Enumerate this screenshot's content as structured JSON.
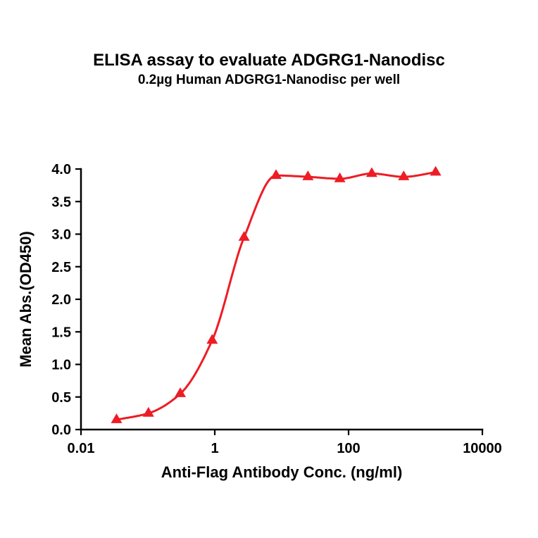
{
  "chart_data": {
    "type": "scatter",
    "title": "ELISA assay to evaluate ADGRG1-Nanodisc",
    "subtitle": "0.2µg Human ADGRG1-Nanodisc per well",
    "xlabel": "Anti-Flag Antibody Conc. (ng/ml)",
    "ylabel": "Mean Abs.(OD450)",
    "x_scale": "log10",
    "xlim": [
      0.01,
      10000
    ],
    "ylim": [
      0.0,
      4.0
    ],
    "x_ticks": [
      0.01,
      1,
      100,
      10000
    ],
    "x_tick_labels": [
      "0.01",
      "1",
      "100",
      "10000"
    ],
    "y_ticks": [
      0.0,
      0.5,
      1.0,
      1.5,
      2.0,
      2.5,
      3.0,
      3.5,
      4.0
    ],
    "y_tick_labels": [
      "0.0",
      "0.5",
      "1.0",
      "1.5",
      "2.0",
      "2.5",
      "3.0",
      "3.5",
      "4.0"
    ],
    "grid": false,
    "legend": "none",
    "line_color": "#ee1c25",
    "marker_color": "#ee1c25",
    "marker": "filled-triangle-up",
    "series": [
      {
        "name": "Human ADGRG1-Nanodisc 0.2µg per well",
        "x": [
          0.034,
          0.102,
          0.305,
          0.914,
          2.74,
          8.23,
          24.7,
          74.1,
          222,
          667,
          2000
        ],
        "y": [
          0.15,
          0.25,
          0.55,
          1.37,
          2.95,
          3.9,
          3.88,
          3.85,
          3.93,
          3.88,
          3.95
        ]
      }
    ]
  }
}
